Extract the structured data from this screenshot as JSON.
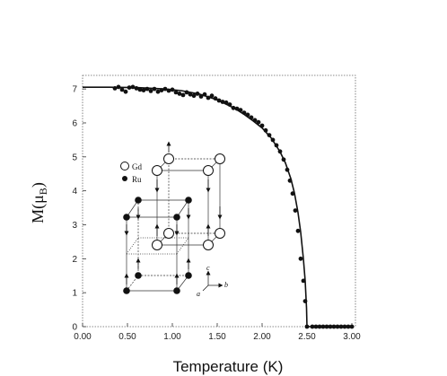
{
  "chart_data": {
    "type": "scatter",
    "title": "",
    "xlabel": "Temperature (K)",
    "ylabel": "M(μB)",
    "ylabel_main": "M(μ",
    "ylabel_sub": "B",
    "ylabel_close": ")",
    "xlim": [
      0,
      3.0
    ],
    "ylim": [
      0,
      7.4
    ],
    "x_ticks": [
      0,
      0.5,
      1.0,
      1.5,
      2.0,
      2.5,
      3.0
    ],
    "x_tick_labels": [
      "0.00",
      "0.50",
      "1.00",
      "1.50",
      "2.00",
      "2.50",
      "3.00"
    ],
    "y_ticks": [
      0,
      1,
      2,
      3,
      4,
      5,
      6,
      7
    ],
    "y_tick_labels": [
      "0",
      "1",
      "2",
      "3",
      "4",
      "5",
      "6",
      "7"
    ],
    "grid": false,
    "series": [
      {
        "kind": "points",
        "x": [
          0.36,
          0.4,
          0.44,
          0.48,
          0.52,
          0.56,
          0.6,
          0.64,
          0.68,
          0.72,
          0.76,
          0.8,
          0.84,
          0.88,
          0.92,
          0.96,
          1.0,
          1.04,
          1.08,
          1.12,
          1.16,
          1.2,
          1.24,
          1.28,
          1.32,
          1.36,
          1.4,
          1.44,
          1.48,
          1.52,
          1.56,
          1.6,
          1.64,
          1.68,
          1.72,
          1.76,
          1.8,
          1.84,
          1.88,
          1.92,
          1.96,
          2.0,
          2.04,
          2.08,
          2.12,
          2.16,
          2.2,
          2.24,
          2.28,
          2.31,
          2.34,
          2.37,
          2.4,
          2.43,
          2.46,
          2.48,
          2.5,
          2.56,
          2.6,
          2.64,
          2.68,
          2.72,
          2.76,
          2.8,
          2.84,
          2.88,
          2.92,
          2.96,
          3.0
        ],
        "y": [
          7.02,
          7.06,
          6.98,
          6.92,
          7.04,
          7.06,
          7.02,
          6.98,
          6.96,
          7.0,
          6.94,
          7.0,
          6.92,
          6.96,
          7.0,
          6.95,
          6.98,
          6.9,
          6.86,
          6.82,
          6.9,
          6.84,
          6.8,
          6.86,
          6.78,
          6.84,
          6.74,
          6.8,
          6.72,
          6.66,
          6.62,
          6.6,
          6.54,
          6.44,
          6.42,
          6.38,
          6.3,
          6.24,
          6.16,
          6.08,
          6.02,
          5.92,
          5.78,
          5.64,
          5.5,
          5.34,
          5.16,
          4.92,
          4.62,
          4.3,
          3.92,
          3.42,
          2.82,
          2.0,
          1.35,
          0.75,
          0.0,
          0.0,
          0.0,
          0.0,
          0.0,
          0.0,
          0.0,
          0.0,
          0.0,
          0.0,
          0.0,
          0.0,
          0.0
        ]
      },
      {
        "kind": "fit-line",
        "x": [
          0.0,
          0.3,
          0.6,
          0.9,
          1.1,
          1.3,
          1.5,
          1.7,
          1.8,
          1.9,
          2.0,
          2.1,
          2.2,
          2.26,
          2.32,
          2.36,
          2.4,
          2.43,
          2.46,
          2.48,
          2.495,
          2.5,
          3.0
        ],
        "y": [
          7.05,
          7.05,
          7.04,
          7.0,
          6.95,
          6.85,
          6.68,
          6.42,
          6.25,
          6.06,
          5.85,
          5.56,
          5.15,
          4.82,
          4.36,
          3.94,
          3.36,
          2.78,
          2.0,
          1.35,
          0.55,
          0.0,
          0.0
        ]
      }
    ],
    "inset": {
      "legend": [
        {
          "label": "Gd",
          "marker": "open-circle"
        },
        {
          "label": "Ru",
          "marker": "filled-circle"
        }
      ],
      "axes": {
        "c": "c",
        "a": "a",
        "b": "b"
      }
    }
  }
}
